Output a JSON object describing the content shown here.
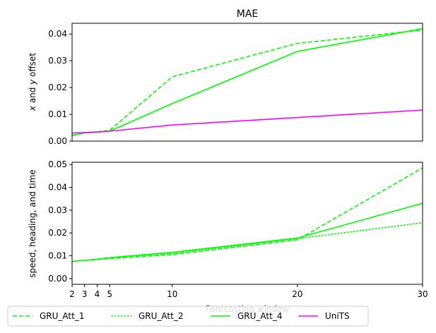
{
  "chart_data": [
    {
      "type": "line",
      "title": "MAE",
      "ylabel": "x and y offset",
      "ylim": [
        0,
        0.044
      ],
      "yticks": [
        "0.00",
        "0.01",
        "0.02",
        "0.03",
        "0.04"
      ],
      "xlim": [
        2,
        30
      ],
      "x": [
        2,
        3,
        4,
        5,
        10,
        20,
        30
      ],
      "series": [
        {
          "name": "GRU_Att_1",
          "color": "#00ff00",
          "dash": "dashed",
          "values": [
            0.002,
            0.003,
            0.0035,
            0.004,
            0.024,
            0.0365,
            0.0415
          ]
        },
        {
          "name": "GRU_Att_2",
          "color": "#00ff00",
          "dash": "dotted",
          "values": [
            0.0022,
            0.003,
            0.0033,
            0.0037,
            0.014,
            0.0335,
            0.042
          ]
        },
        {
          "name": "GRU_Att_4",
          "color": "#00ff00",
          "dash": "solid",
          "values": [
            0.0022,
            0.003,
            0.0033,
            0.0037,
            0.014,
            0.0335,
            0.042
          ]
        },
        {
          "name": "UniTS",
          "color": "#ff00ff",
          "dash": "solid",
          "values": [
            0.003,
            0.0032,
            0.0034,
            0.0037,
            0.006,
            0.0088,
            0.0116
          ]
        }
      ]
    },
    {
      "type": "line",
      "title": "",
      "ylabel": "speed, heading, and time",
      "xlabel": "Forecasting window",
      "ylim": [
        -0.0025,
        0.051
      ],
      "yticks": [
        "0.00",
        "0.01",
        "0.02",
        "0.03",
        "0.04",
        "0.05"
      ],
      "xlim": [
        2,
        30
      ],
      "x": [
        2,
        3,
        4,
        5,
        10,
        20,
        30
      ],
      "xticks": [
        "2",
        "3",
        "4",
        "5",
        "10",
        "20",
        "30"
      ],
      "series": [
        {
          "name": "GRU_Att_1",
          "color": "#00ff00",
          "dash": "dashed",
          "values": [
            0.0075,
            0.008,
            0.0083,
            0.0088,
            0.0105,
            0.017,
            0.0485
          ]
        },
        {
          "name": "GRU_Att_2",
          "color": "#00ff00",
          "dash": "dotted",
          "values": [
            0.0075,
            0.008,
            0.0085,
            0.009,
            0.011,
            0.0175,
            0.0245
          ]
        },
        {
          "name": "GRU_Att_4",
          "color": "#00ff00",
          "dash": "solid",
          "values": [
            0.0075,
            0.008,
            0.0085,
            0.0092,
            0.0115,
            0.0178,
            0.033
          ]
        },
        {
          "name": "UniTS",
          "color": "#ff00ff",
          "dash": "solid",
          "values": [
            null,
            null,
            null,
            null,
            null,
            null,
            null
          ]
        }
      ]
    }
  ],
  "legend": {
    "placement": "bottom",
    "entries": [
      {
        "name": "GRU_Att_1",
        "color": "#00ff00",
        "dash": "dashed"
      },
      {
        "name": "GRU_Att_2",
        "color": "#00ff00",
        "dash": "dotted"
      },
      {
        "name": "GRU_Att_4",
        "color": "#00ff00",
        "dash": "solid"
      },
      {
        "name": "UniTS",
        "color": "#ff00ff",
        "dash": "solid"
      }
    ]
  }
}
